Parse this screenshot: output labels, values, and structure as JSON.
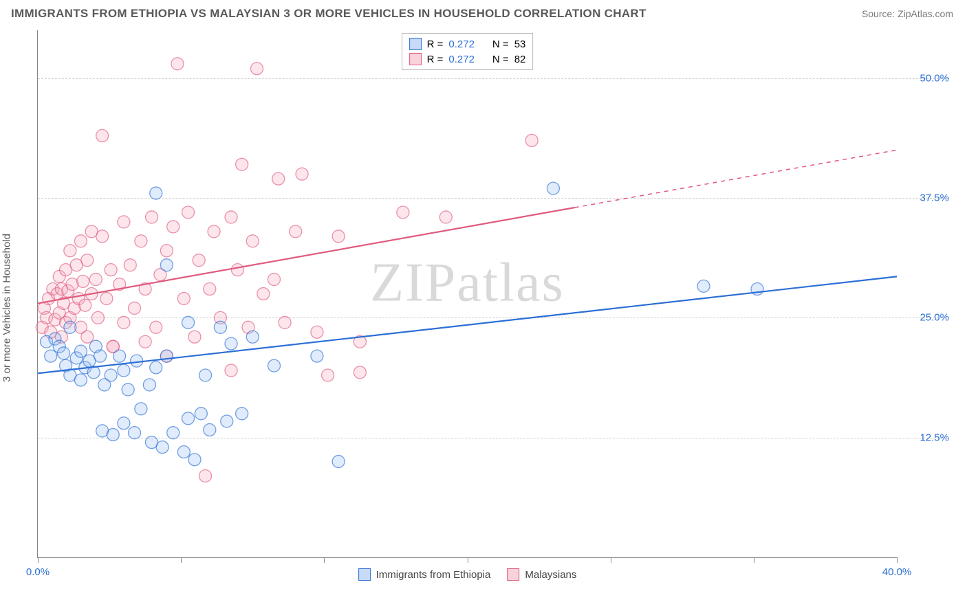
{
  "header": {
    "title": "IMMIGRANTS FROM ETHIOPIA VS MALAYSIAN 3 OR MORE VEHICLES IN HOUSEHOLD CORRELATION CHART",
    "source": "Source: ZipAtlas.com"
  },
  "watermark": "ZIPatlas",
  "chart": {
    "type": "scatter",
    "ylabel": "3 or more Vehicles in Household",
    "xlim": [
      0,
      40
    ],
    "ylim": [
      0,
      55
    ],
    "xticks": [
      0,
      6.67,
      13.33,
      20,
      26.67,
      33.33,
      40
    ],
    "xtick_labels": {
      "0": "0.0%",
      "40": "40.0%"
    },
    "yticks": [
      12.5,
      25.0,
      37.5,
      50.0
    ],
    "ytick_labels": [
      "12.5%",
      "25.0%",
      "37.5%",
      "50.0%"
    ],
    "grid_color": "#d0d0d0",
    "axis_color": "#888888",
    "tick_label_color": "#2b6fd6",
    "marker_radius": 9,
    "marker_stroke_width": 1.3,
    "marker_fill_opacity": 0.28,
    "trend_line_width": 2.2,
    "series": [
      {
        "key": "ethiopia",
        "label": "Immigrants from Ethiopia",
        "color": "#2b6fd6",
        "fill": "#8fb6ef",
        "R": "0.272",
        "N": "53",
        "trend": {
          "x0": 0,
          "y0": 19.2,
          "x1": 40,
          "y1": 29.3,
          "dash_from_x": 40
        },
        "points": [
          [
            0.4,
            22.5
          ],
          [
            0.6,
            21.0
          ],
          [
            0.8,
            22.8
          ],
          [
            1.0,
            22.0
          ],
          [
            1.2,
            21.3
          ],
          [
            1.3,
            20.0
          ],
          [
            1.5,
            19.0
          ],
          [
            1.5,
            24.0
          ],
          [
            1.8,
            20.8
          ],
          [
            2.0,
            18.5
          ],
          [
            2.0,
            21.5
          ],
          [
            2.2,
            19.8
          ],
          [
            2.4,
            20.5
          ],
          [
            2.6,
            19.3
          ],
          [
            2.7,
            22.0
          ],
          [
            2.9,
            21.0
          ],
          [
            3.0,
            13.2
          ],
          [
            3.1,
            18.0
          ],
          [
            3.4,
            19.0
          ],
          [
            3.5,
            12.8
          ],
          [
            3.8,
            21.0
          ],
          [
            4.0,
            14.0
          ],
          [
            4.0,
            19.5
          ],
          [
            4.2,
            17.5
          ],
          [
            4.5,
            13.0
          ],
          [
            4.6,
            20.5
          ],
          [
            4.8,
            15.5
          ],
          [
            5.2,
            18.0
          ],
          [
            5.3,
            12.0
          ],
          [
            5.5,
            19.8
          ],
          [
            5.5,
            38.0
          ],
          [
            5.8,
            11.5
          ],
          [
            6.0,
            21.0
          ],
          [
            6.0,
            30.5
          ],
          [
            6.3,
            13.0
          ],
          [
            6.8,
            11.0
          ],
          [
            7.0,
            14.5
          ],
          [
            7.0,
            24.5
          ],
          [
            7.3,
            10.2
          ],
          [
            7.6,
            15.0
          ],
          [
            7.8,
            19.0
          ],
          [
            8.0,
            13.3
          ],
          [
            8.5,
            24.0
          ],
          [
            8.8,
            14.2
          ],
          [
            9.0,
            22.3
          ],
          [
            9.5,
            15.0
          ],
          [
            10.0,
            23.0
          ],
          [
            11.0,
            20.0
          ],
          [
            13.0,
            21.0
          ],
          [
            14.0,
            10.0
          ],
          [
            24.0,
            38.5
          ],
          [
            31.0,
            28.3
          ],
          [
            33.5,
            28.0
          ]
        ]
      },
      {
        "key": "malaysians",
        "label": "Malaysians",
        "color": "#e15a7d",
        "fill": "#f3a6ba",
        "R": "0.272",
        "N": "82",
        "trend": {
          "x0": 0,
          "y0": 26.5,
          "x1": 40,
          "y1": 42.5,
          "dash_from_x": 25
        },
        "points": [
          [
            0.2,
            24.0
          ],
          [
            0.3,
            26.0
          ],
          [
            0.4,
            25.0
          ],
          [
            0.5,
            27.0
          ],
          [
            0.6,
            23.5
          ],
          [
            0.7,
            28.0
          ],
          [
            0.8,
            24.8
          ],
          [
            0.9,
            27.5
          ],
          [
            1.0,
            25.5
          ],
          [
            1.0,
            29.3
          ],
          [
            1.1,
            23.0
          ],
          [
            1.1,
            28.0
          ],
          [
            1.2,
            26.5
          ],
          [
            1.3,
            24.5
          ],
          [
            1.3,
            30.0
          ],
          [
            1.4,
            27.8
          ],
          [
            1.5,
            25.0
          ],
          [
            1.5,
            32.0
          ],
          [
            1.6,
            28.5
          ],
          [
            1.7,
            26.0
          ],
          [
            1.8,
            30.5
          ],
          [
            1.9,
            27.0
          ],
          [
            2.0,
            24.0
          ],
          [
            2.0,
            33.0
          ],
          [
            2.1,
            28.8
          ],
          [
            2.2,
            26.3
          ],
          [
            2.3,
            31.0
          ],
          [
            2.3,
            23.0
          ],
          [
            2.5,
            34.0
          ],
          [
            2.5,
            27.5
          ],
          [
            2.7,
            29.0
          ],
          [
            2.8,
            25.0
          ],
          [
            3.0,
            33.5
          ],
          [
            3.0,
            44.0
          ],
          [
            3.2,
            27.0
          ],
          [
            3.4,
            30.0
          ],
          [
            3.5,
            22.0
          ],
          [
            3.5,
            22.0
          ],
          [
            3.8,
            28.5
          ],
          [
            4.0,
            35.0
          ],
          [
            4.0,
            24.5
          ],
          [
            4.3,
            30.5
          ],
          [
            4.5,
            26.0
          ],
          [
            4.8,
            33.0
          ],
          [
            5.0,
            28.0
          ],
          [
            5.0,
            22.5
          ],
          [
            5.3,
            35.5
          ],
          [
            5.5,
            24.0
          ],
          [
            5.7,
            29.5
          ],
          [
            6.0,
            32.0
          ],
          [
            6.0,
            21.0
          ],
          [
            6.3,
            34.5
          ],
          [
            6.5,
            51.5
          ],
          [
            6.8,
            27.0
          ],
          [
            7.0,
            36.0
          ],
          [
            7.3,
            23.0
          ],
          [
            7.5,
            31.0
          ],
          [
            7.8,
            8.5
          ],
          [
            8.0,
            28.0
          ],
          [
            8.2,
            34.0
          ],
          [
            8.5,
            25.0
          ],
          [
            9.0,
            35.5
          ],
          [
            9.0,
            19.5
          ],
          [
            9.3,
            30.0
          ],
          [
            9.5,
            41.0
          ],
          [
            9.8,
            24.0
          ],
          [
            10.0,
            33.0
          ],
          [
            10.2,
            51.0
          ],
          [
            10.5,
            27.5
          ],
          [
            11.0,
            29.0
          ],
          [
            11.2,
            39.5
          ],
          [
            11.5,
            24.5
          ],
          [
            12.0,
            34.0
          ],
          [
            12.3,
            40.0
          ],
          [
            13.0,
            23.5
          ],
          [
            13.5,
            19.0
          ],
          [
            14.0,
            33.5
          ],
          [
            15.0,
            22.5
          ],
          [
            15.0,
            19.3
          ],
          [
            17.0,
            36.0
          ],
          [
            19.0,
            35.5
          ],
          [
            23.0,
            43.5
          ]
        ]
      }
    ]
  },
  "legend_top_labels": {
    "R": "R =",
    "N": "N ="
  }
}
